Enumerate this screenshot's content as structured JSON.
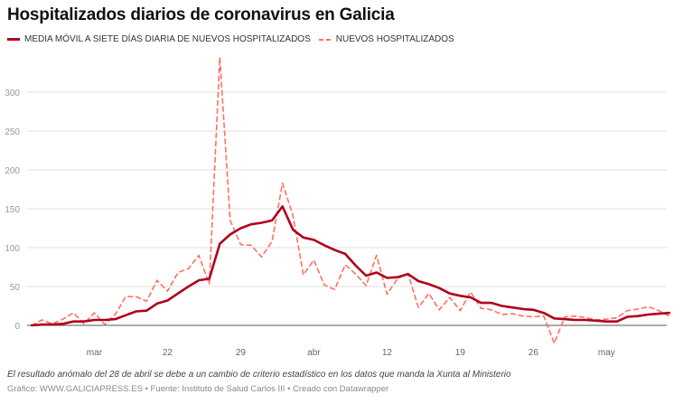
{
  "chart_data": {
    "type": "line",
    "title": "Hospitalizados diarios de coronavirus en Galicia",
    "start_date": "2020-03-09",
    "x_ticks": [
      {
        "date": "2020-03-15",
        "label": "mar"
      },
      {
        "date": "2020-03-22",
        "label": "22"
      },
      {
        "date": "2020-03-29",
        "label": "29"
      },
      {
        "date": "2020-04-05",
        "label": "abr"
      },
      {
        "date": "2020-04-12",
        "label": "12"
      },
      {
        "date": "2020-04-19",
        "label": "19"
      },
      {
        "date": "2020-04-26",
        "label": "26"
      },
      {
        "date": "2020-05-03",
        "label": "may"
      }
    ],
    "y_ticks": [
      0,
      50,
      100,
      150,
      200,
      250,
      300
    ],
    "ylim": [
      0,
      300
    ],
    "grid": true,
    "legend_placement": "top-left",
    "series": [
      {
        "name": "MEDIA MÓVIL A SIETE DÍAS DIARIA DE NUEVOS HOSPITALIZADOS",
        "color": "#b0001c",
        "style": "solid",
        "values": [
          0,
          1,
          1,
          2,
          5,
          5,
          7,
          7,
          8,
          13,
          18,
          19,
          28,
          32,
          41,
          50,
          58,
          60,
          105,
          117,
          125,
          130,
          132,
          135,
          153,
          123,
          113,
          110,
          103,
          97,
          92,
          77,
          64,
          68,
          61,
          62,
          66,
          57,
          53,
          48,
          41,
          38,
          36,
          29,
          29,
          25,
          23,
          21,
          20,
          16,
          9,
          8,
          7,
          7,
          6,
          5,
          5,
          11,
          12,
          14,
          15,
          16
        ]
      },
      {
        "name": "NUEVOS HOSPITALIZADOS",
        "color": "#ff7060",
        "style": "dashed",
        "values": [
          0,
          7,
          2,
          8,
          16,
          2,
          16,
          1,
          14,
          37,
          37,
          31,
          58,
          44,
          68,
          73,
          90,
          53,
          345,
          135,
          104,
          103,
          88,
          108,
          183,
          141,
          65,
          84,
          52,
          46,
          78,
          66,
          51,
          90,
          40,
          60,
          67,
          23,
          41,
          20,
          36,
          19,
          43,
          22,
          20,
          14,
          15,
          12,
          11,
          12,
          -23,
          11,
          12,
          10,
          7,
          8,
          10,
          19,
          21,
          24,
          19,
          12
        ]
      }
    ],
    "note": "El resultado anómalo del 28 de abril se debe a un cambio de criterio estadístico en los datos que manda la Xunta al Ministerio",
    "credit": "Gráfico: WWW.GALICIAPRESS.ES • Fuente: Instituto de Salud Carlos III • Creado con Datawrapper"
  }
}
